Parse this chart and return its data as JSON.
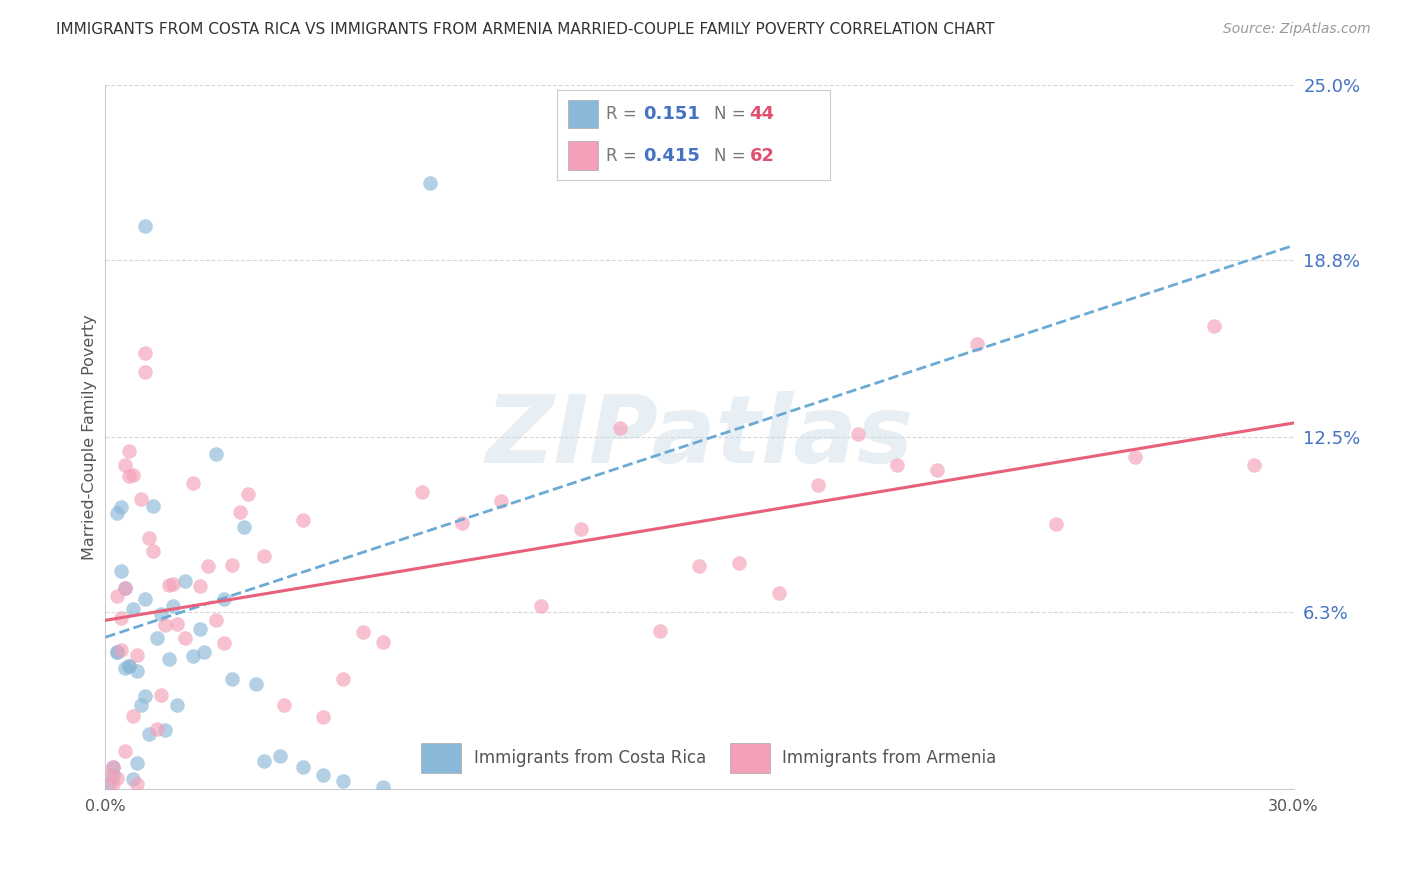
{
  "title": "IMMIGRANTS FROM COSTA RICA VS IMMIGRANTS FROM ARMENIA MARRIED-COUPLE FAMILY POVERTY CORRELATION CHART",
  "source": "Source: ZipAtlas.com",
  "ylabel": "Married-Couple Family Poverty",
  "xlim": [
    0.0,
    0.3
  ],
  "ylim": [
    0.0,
    0.25
  ],
  "ytick_values": [
    0.0,
    0.063,
    0.125,
    0.188,
    0.25
  ],
  "ytick_labels_right": [
    "6.3%",
    "12.5%",
    "18.8%",
    "25.0%"
  ],
  "xtick_labels": [
    "0.0%",
    "30.0%"
  ],
  "right_label_color": "#4472c4",
  "legend_r1_val": "0.151",
  "legend_n1_val": "44",
  "legend_r2_val": "0.415",
  "legend_n2_val": "62",
  "costa_rica_color": "#8ab8d8",
  "armenia_color": "#f4a0b8",
  "costa_rica_line_color": "#6aaad5",
  "armenia_line_color": "#e8607a",
  "watermark": "ZIPatlas",
  "background_color": "#ffffff",
  "grid_color": "#d8d8d8",
  "title_fontsize": 11,
  "source_fontsize": 10,
  "scatter_size": 110,
  "scatter_alpha": 0.65,
  "cr_line_start_x": 0.0,
  "cr_line_start_y": 0.054,
  "cr_line_end_x": 0.3,
  "cr_line_end_y": 0.193,
  "ar_line_start_x": 0.0,
  "ar_line_start_y": 0.06,
  "ar_line_end_x": 0.3,
  "ar_line_end_y": 0.13
}
